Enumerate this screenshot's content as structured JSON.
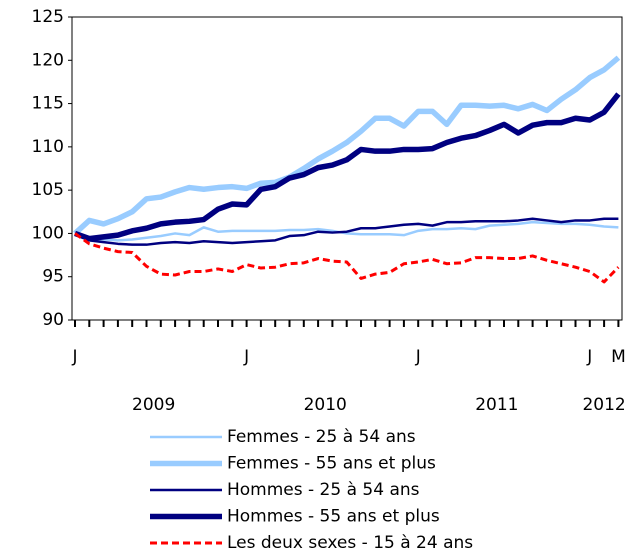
{
  "chart_data": {
    "type": "line",
    "categories": [
      "J",
      null,
      null,
      null,
      null,
      null,
      null,
      null,
      null,
      null,
      null,
      null,
      "J",
      null,
      null,
      null,
      null,
      null,
      null,
      null,
      null,
      null,
      null,
      null,
      "J",
      null,
      null,
      null,
      null,
      null,
      null,
      null,
      null,
      null,
      null,
      null,
      "J",
      null,
      "M"
    ],
    "year_labels": [
      "2009",
      "2010",
      "2011",
      "2012"
    ],
    "ylim": [
      90,
      125
    ],
    "yticks": [
      90,
      95,
      100,
      105,
      110,
      115,
      120,
      125
    ],
    "grid": false,
    "series": [
      {
        "name": "Femmes - 25 à 54 ans",
        "color": "#99ccff",
        "style": "thin",
        "values": [
          100,
          99.5,
          99.3,
          99.2,
          99.3,
          99.5,
          99.7,
          100,
          99.8,
          100.7,
          100.2,
          100.3,
          100.3,
          100.3,
          100.3,
          100.4,
          100.4,
          100.5,
          100.3,
          100,
          99.9,
          99.9,
          99.9,
          99.8,
          100.3,
          100.5,
          100.5,
          100.6,
          100.5,
          100.9,
          101,
          101.1,
          101.3,
          101.2,
          101.1,
          101.1,
          101,
          100.8,
          100.7
        ]
      },
      {
        "name": "Femmes - 55 ans et plus",
        "color": "#99ccff",
        "style": "thick",
        "values": [
          100,
          101.5,
          101.1,
          101.7,
          102.5,
          104,
          104.2,
          104.8,
          105.3,
          105.1,
          105.3,
          105.4,
          105.2,
          105.8,
          105.9,
          106.5,
          107.5,
          108.6,
          109.5,
          110.5,
          111.8,
          113.3,
          113.3,
          112.4,
          114.1,
          114.1,
          112.6,
          114.8,
          114.8,
          114.7,
          114.8,
          114.4,
          114.9,
          114.2,
          115.5,
          116.6,
          118,
          118.9,
          120.3
        ]
      },
      {
        "name": "Hommes - 25 à 54 ans",
        "color": "#000080",
        "style": "thin",
        "values": [
          100,
          99.2,
          99,
          98.8,
          98.7,
          98.7,
          98.9,
          99,
          98.9,
          99.1,
          99,
          98.9,
          99,
          99.1,
          99.2,
          99.7,
          99.8,
          100.2,
          100.1,
          100.2,
          100.6,
          100.6,
          100.8,
          101,
          101.1,
          100.9,
          101.3,
          101.3,
          101.4,
          101.4,
          101.4,
          101.5,
          101.7,
          101.5,
          101.3,
          101.5,
          101.5,
          101.7,
          101.7
        ]
      },
      {
        "name": "Hommes - 55 ans et plus",
        "color": "#000080",
        "style": "thick",
        "values": [
          100,
          99.4,
          99.6,
          99.8,
          100.3,
          100.6,
          101.1,
          101.3,
          101.4,
          101.6,
          102.8,
          103.4,
          103.3,
          105.1,
          105.4,
          106.4,
          106.8,
          107.6,
          107.9,
          108.5,
          109.7,
          109.5,
          109.5,
          109.7,
          109.7,
          109.8,
          110.5,
          111,
          111.3,
          111.9,
          112.6,
          111.6,
          112.5,
          112.8,
          112.8,
          113.3,
          113.1,
          114,
          116.1
        ]
      },
      {
        "name": "Les deux sexes - 15 à 24 ans",
        "color": "#ff0000",
        "style": "dashed",
        "values": [
          100,
          98.8,
          98.3,
          97.9,
          97.8,
          96.2,
          95.3,
          95.2,
          95.6,
          95.6,
          95.9,
          95.6,
          96.4,
          96,
          96.1,
          96.5,
          96.6,
          97.1,
          96.8,
          96.7,
          94.8,
          95.3,
          95.5,
          96.5,
          96.7,
          97,
          96.5,
          96.6,
          97.2,
          97.2,
          97.1,
          97.1,
          97.4,
          96.9,
          96.5,
          96.1,
          95.6,
          94.4,
          96.1
        ]
      }
    ]
  }
}
